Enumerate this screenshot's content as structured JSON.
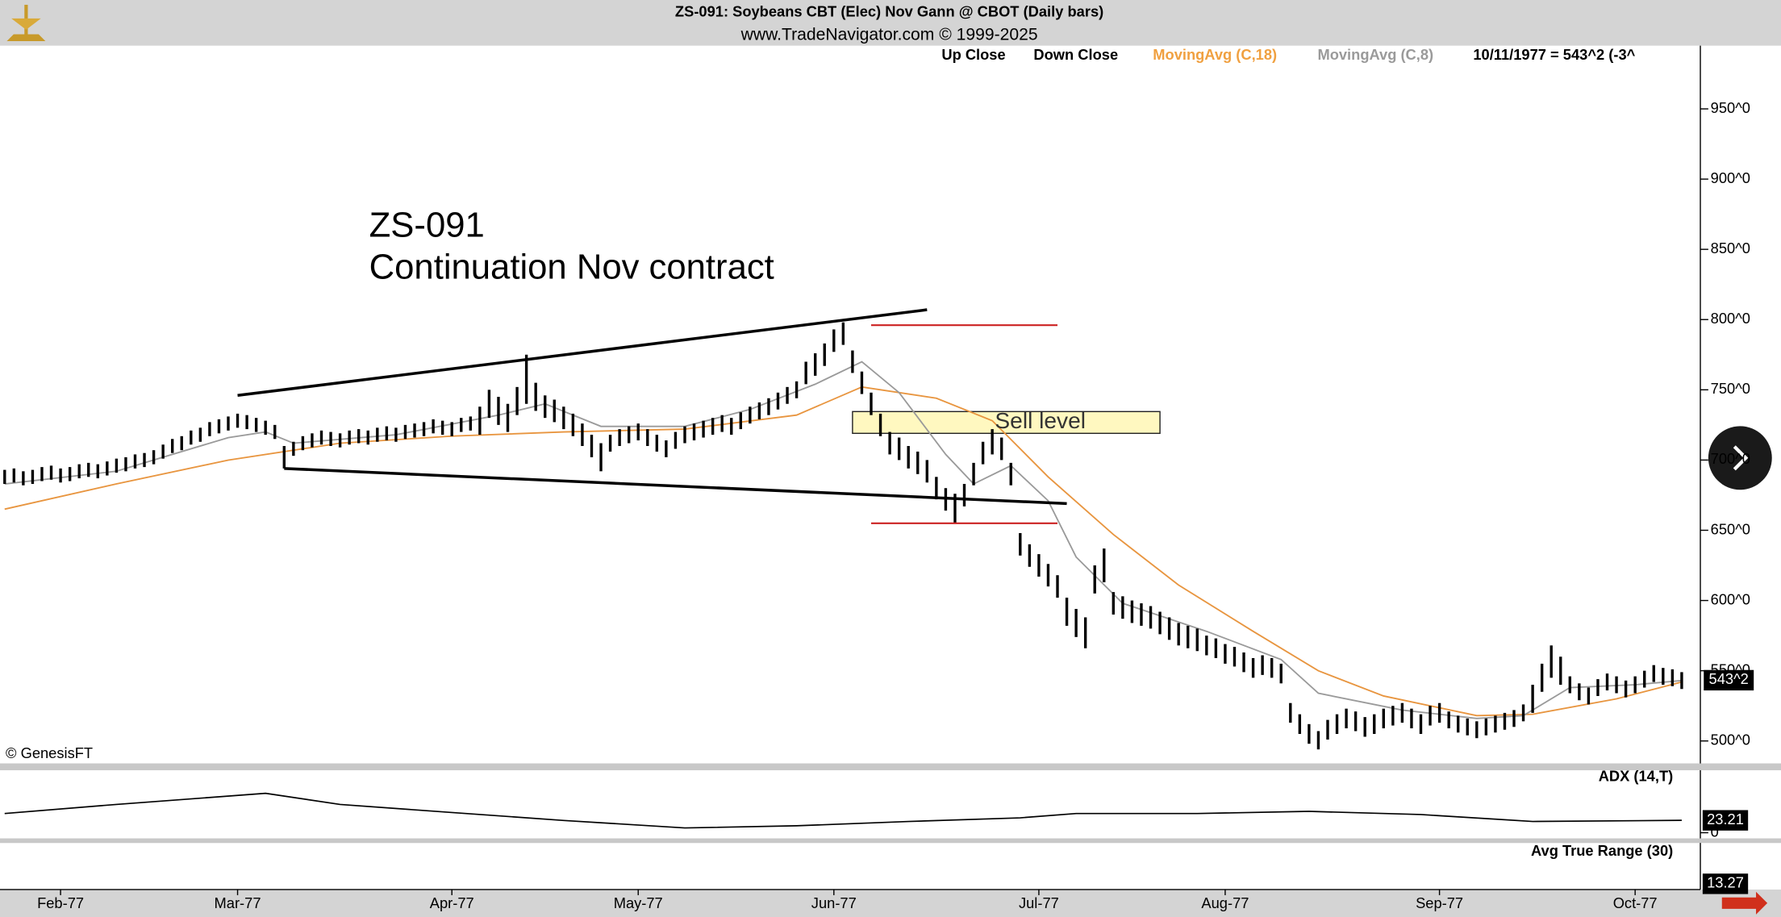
{
  "chart_data": [
    {
      "type": "ohlc",
      "title": "ZS-091:  Soybeans CBT (Elec) Nov Gann @ CBOT  (Daily bars)",
      "subtitle": "www.TradeNavigator.com © 1999-2025",
      "legend": [
        "Up Close",
        "Down Close"
      ],
      "status": "10/11/1977 = 543^2 (-3^",
      "copyright": "© GenesisFT",
      "annotation": [
        "ZS-091",
        "Continuation Nov contract"
      ],
      "color": "#000000",
      "xlim": [
        -0.5,
        182
      ],
      "ylim": [
        484,
        995
      ],
      "xticks": [
        {
          "value": 6,
          "label": "Feb-77"
        },
        {
          "value": 25,
          "label": "Mar-77"
        },
        {
          "value": 48,
          "label": "Apr-77"
        },
        {
          "value": 68,
          "label": "May-77"
        },
        {
          "value": 89,
          "label": "Jun-77"
        },
        {
          "value": 111,
          "label": "Jul-77"
        },
        {
          "value": 131,
          "label": "Aug-77"
        },
        {
          "value": 154,
          "label": "Sep-77"
        },
        {
          "value": 175,
          "label": "Oct-77"
        }
      ],
      "yticks": [
        {
          "value": 500,
          "label": "500^0"
        },
        {
          "value": 550,
          "label": "550^0"
        },
        {
          "value": 600,
          "label": "600^0"
        },
        {
          "value": 650,
          "label": "650^0"
        },
        {
          "value": 700,
          "label": "700^0"
        },
        {
          "value": 750,
          "label": "750^0"
        },
        {
          "value": 800,
          "label": "800^0"
        },
        {
          "value": 850,
          "label": "850^0"
        },
        {
          "value": 900,
          "label": "900^0"
        },
        {
          "value": 950,
          "label": "950^0"
        }
      ],
      "high": [
        693,
        694,
        692,
        693,
        695,
        696,
        694,
        695,
        697,
        698,
        697,
        699,
        701,
        702,
        704,
        705,
        707,
        711,
        715,
        717,
        721,
        723,
        727,
        729,
        731,
        733,
        732,
        730,
        728,
        725,
        710,
        713,
        717,
        719,
        721,
        720,
        719,
        721,
        722,
        721,
        723,
        724,
        723,
        725,
        726,
        727,
        729,
        728,
        727,
        730,
        731,
        738,
        750,
        745,
        740,
        752,
        775,
        755,
        746,
        743,
        738,
        733,
        726,
        718,
        712,
        718,
        722,
        724,
        726,
        722,
        718,
        714,
        720,
        724,
        726,
        728,
        730,
        732,
        730,
        734,
        738,
        741,
        744,
        748,
        752,
        756,
        770,
        776,
        783,
        793,
        798,
        778,
        763,
        748,
        733,
        720,
        716,
        710,
        706,
        700,
        688,
        680,
        676,
        683,
        698,
        713,
        722,
        716,
        698,
        648,
        640,
        633,
        626,
        618,
        602,
        594,
        588,
        625,
        637,
        606,
        603,
        600,
        598,
        596,
        592,
        588,
        584,
        582,
        580,
        575,
        573,
        569,
        567,
        563,
        559,
        561,
        559,
        555,
        527,
        519,
        512,
        507,
        515,
        519,
        523,
        521,
        517,
        519,
        523,
        525,
        527,
        523,
        519,
        525,
        527,
        521,
        518,
        516,
        514,
        516,
        518,
        520,
        522,
        526,
        540,
        555,
        568,
        560,
        546,
        541,
        538,
        544,
        548,
        546,
        543,
        546,
        550,
        554,
        552,
        551,
        549
      ],
      "low": [
        683,
        684,
        682,
        683,
        685,
        686,
        684,
        685,
        687,
        688,
        687,
        689,
        691,
        692,
        694,
        695,
        697,
        701,
        705,
        707,
        711,
        713,
        717,
        719,
        721,
        723,
        722,
        720,
        718,
        715,
        694,
        703,
        707,
        709,
        711,
        710,
        709,
        711,
        712,
        711,
        713,
        714,
        713,
        715,
        716,
        717,
        719,
        718,
        717,
        720,
        721,
        718,
        730,
        725,
        720,
        732,
        740,
        735,
        730,
        727,
        722,
        717,
        710,
        702,
        692,
        706,
        710,
        712,
        714,
        710,
        706,
        702,
        708,
        712,
        714,
        716,
        718,
        720,
        718,
        722,
        726,
        729,
        732,
        736,
        740,
        744,
        754,
        760,
        767,
        777,
        782,
        762,
        747,
        732,
        717,
        704,
        700,
        694,
        690,
        684,
        672,
        664,
        655,
        667,
        682,
        697,
        704,
        700,
        682,
        632,
        624,
        617,
        610,
        602,
        582,
        574,
        566,
        605,
        613,
        590,
        587,
        584,
        582,
        580,
        576,
        572,
        568,
        566,
        564,
        561,
        559,
        555,
        553,
        549,
        545,
        547,
        545,
        541,
        513,
        505,
        498,
        494,
        501,
        505,
        509,
        507,
        503,
        505,
        509,
        511,
        513,
        509,
        505,
        511,
        513,
        509,
        506,
        504,
        502,
        504,
        506,
        508,
        510,
        514,
        520,
        535,
        545,
        540,
        534,
        529,
        526,
        532,
        536,
        534,
        531,
        534,
        538,
        542,
        540,
        539,
        537
      ],
      "series": [
        {
          "name": "MovingAvg (C,18)",
          "color": "#e8953f",
          "x": [
            0,
            12,
            24,
            36,
            48,
            60,
            73,
            85,
            92,
            100,
            106,
            112,
            119,
            126,
            134,
            141,
            148,
            158,
            164,
            173,
            180
          ],
          "values": [
            665,
            683,
            700,
            712,
            717,
            720,
            722,
            732,
            752,
            744,
            728,
            688,
            647,
            611,
            578,
            550,
            532,
            518,
            519,
            530,
            542
          ]
        },
        {
          "name": "MovingAvg (C,8)",
          "color": "#9a9a9a",
          "x": [
            0,
            12,
            24,
            28,
            31,
            42,
            53,
            58,
            64,
            73,
            80,
            87,
            92,
            96,
            101,
            104,
            108,
            112,
            115,
            120,
            129,
            137,
            141,
            150,
            158,
            163,
            168,
            175,
            180
          ],
          "values": [
            683,
            692,
            716,
            720,
            712,
            718,
            732,
            740,
            724,
            724,
            736,
            754,
            770,
            748,
            704,
            683,
            696,
            671,
            631,
            598,
            578,
            558,
            534,
            522,
            516,
            518,
            538,
            540,
            543
          ]
        }
      ],
      "trendlines": [
        {
          "color": "#000000",
          "x": [
            25,
            99
          ],
          "values": [
            746,
            807
          ]
        },
        {
          "color": "#000000",
          "x": [
            30,
            114
          ],
          "values": [
            694,
            669
          ]
        },
        {
          "color": "#cc2222",
          "x": [
            93,
            113
          ],
          "values": [
            796,
            796
          ]
        },
        {
          "color": "#cc2222",
          "x": [
            93,
            113
          ],
          "values": [
            655,
            655
          ]
        }
      ],
      "zone": {
        "label": "Sell level",
        "color": "#fff8c0",
        "x": [
          91,
          124
        ],
        "values": [
          734.5,
          719
        ]
      },
      "last_price": {
        "value": 543.25,
        "label": "543^2"
      }
    },
    {
      "type": "line",
      "title": "ADX (14,T)",
      "ylim": [
        0,
        130
      ],
      "yticks": [
        0
      ],
      "last_value": 23.21,
      "series": [
        {
          "color": "#000000",
          "x": [
            0,
            12,
            28,
            36,
            48,
            60,
            73,
            85,
            97,
            109,
            115,
            128,
            140,
            152,
            164,
            180
          ],
          "values": [
            36,
            53,
            74,
            53,
            38,
            23,
            9,
            13,
            21,
            28,
            36,
            36,
            40,
            34,
            21,
            23.21
          ]
        }
      ]
    },
    {
      "type": "text",
      "title": "Avg True Range (30)",
      "last_value": 13.27
    }
  ]
}
